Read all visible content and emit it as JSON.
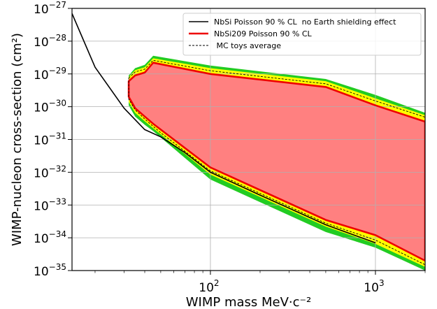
{
  "chart_data": {
    "type": "area",
    "xlabel": "WIMP mass MeV·c⁻²",
    "ylabel": "WIMP-nucleon cross-section (cm²)",
    "xscale": "log",
    "yscale": "log",
    "xlim": [
      14.5,
      2000
    ],
    "ylim": [
      1e-35,
      1e-27
    ],
    "grid": true,
    "legend_position": "top-right",
    "x_ticks": [
      {
        "value": 100,
        "base": "10",
        "exp": "2"
      },
      {
        "value": 1000,
        "base": "10",
        "exp": "3"
      }
    ],
    "y_ticks": [
      {
        "value": 1e-35,
        "base": "10",
        "exp": "−35"
      },
      {
        "value": 1e-34,
        "base": "10",
        "exp": "−34"
      },
      {
        "value": 1e-33,
        "base": "10",
        "exp": "−33"
      },
      {
        "value": 1e-32,
        "base": "10",
        "exp": "−32"
      },
      {
        "value": 1e-31,
        "base": "10",
        "exp": "−31"
      },
      {
        "value": 1e-30,
        "base": "10",
        "exp": "−30"
      },
      {
        "value": 1e-29,
        "base": "10",
        "exp": "−29"
      },
      {
        "value": 1e-28,
        "base": "10",
        "exp": "−28"
      },
      {
        "value": 1e-27,
        "base": "10",
        "exp": "−27"
      }
    ],
    "series": [
      {
        "name": "NbSi Poisson 90 % CL  no Earth shielding effect",
        "color": "#000000",
        "style": "solid",
        "x": [
          14.5,
          20,
          30,
          40,
          50,
          70,
          100,
          200,
          500,
          1000
        ],
        "y": [
          7e-28,
          1.6e-29,
          9e-31,
          2e-31,
          1.2e-31,
          4e-32,
          1e-32,
          2e-33,
          2.5e-34,
          7e-35
        ]
      },
      {
        "name": "NbSi209 Poisson 90 % CL",
        "color": "#ee0000",
        "style": "solid",
        "x": [
          32,
          35,
          40,
          45,
          100,
          500,
          1000,
          2000,
          2000,
          1000,
          500,
          100,
          50,
          45,
          40,
          35,
          32
        ],
        "y": [
          6e-30,
          9e-30,
          1.1e-29,
          2.2e-29,
          1e-29,
          4e-30,
          1.1e-30,
          3.5e-31,
          2e-35,
          1.2e-34,
          3.5e-34,
          1.4e-32,
          2e-31,
          3e-31,
          5e-31,
          9e-31,
          2e-30
        ]
      },
      {
        "name": " MC toys average",
        "color": "#000000",
        "style": "dashed",
        "x": [
          32,
          35,
          40,
          45,
          100,
          500,
          1000,
          2000,
          2000,
          1000,
          500,
          100,
          50,
          45,
          40,
          35,
          32
        ],
        "y": [
          7.5e-30,
          1.15e-29,
          1.4e-29,
          2.6e-29,
          1.25e-29,
          5e-30,
          1.5e-30,
          4.8e-31,
          1.5e-35,
          8.5e-35,
          2.8e-34,
          1.1e-32,
          1.6e-31,
          2.5e-31,
          4.2e-31,
          8e-31,
          1.7e-30
        ]
      }
    ],
    "bands": [
      {
        "color": "#22cc22",
        "upper": {
          "x": [
            32,
            35,
            40,
            45,
            100,
            500,
            1000,
            2000
          ],
          "y": [
            9e-30,
            1.5e-29,
            1.9e-29,
            3.6e-29,
            1.8e-29,
            7e-30,
            2.3e-30,
            6.5e-31
          ]
        },
        "lower": {
          "x": [
            32,
            35,
            40,
            45,
            100,
            500,
            1000,
            2000
          ],
          "y": [
            1.1e-30,
            5e-31,
            2.8e-31,
            1.8e-31,
            6e-33,
            1.5e-34,
            5e-35,
            1e-35
          ]
        }
      },
      {
        "color": "#ffff00",
        "upper": {
          "x": [
            32,
            35,
            40,
            45,
            100,
            500,
            1000,
            2000
          ],
          "y": [
            8e-30,
            1.3e-29,
            1.6e-29,
            3e-29,
            1.5e-29,
            6e-30,
            1.8e-30,
            5.5e-31
          ]
        },
        "lower": {
          "x": [
            32,
            35,
            40,
            45,
            100,
            500,
            1000,
            2000
          ],
          "y": [
            1.4e-30,
            6.5e-31,
            3.6e-31,
            2.2e-31,
            8.5e-33,
            2.2e-34,
            6.5e-35,
            1.3e-35
          ]
        }
      }
    ],
    "fill_color": "#ff8080"
  }
}
